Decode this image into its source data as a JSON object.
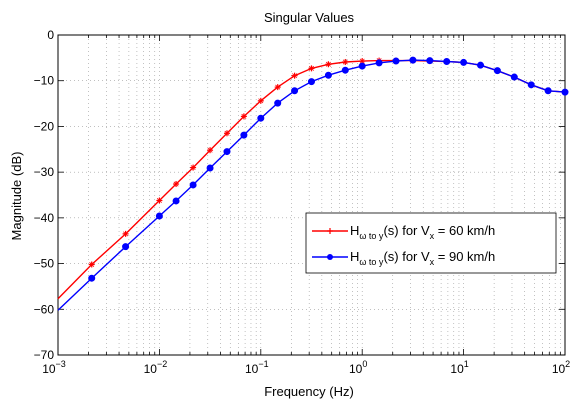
{
  "chart_data": {
    "type": "line",
    "title": "Singular Values",
    "xlabel": "Frequency  (Hz)",
    "ylabel": "Magnitude (dB)",
    "xscale": "log",
    "xlim": [
      0.001,
      100
    ],
    "ylim": [
      -70,
      0
    ],
    "grid": true,
    "x_tick_labels": [
      {
        "base": "10",
        "exp": "−3"
      },
      {
        "base": "10",
        "exp": "−2"
      },
      {
        "base": "10",
        "exp": "−1"
      },
      {
        "base": "10",
        "exp": "0"
      },
      {
        "base": "10",
        "exp": "1"
      },
      {
        "base": "10",
        "exp": "2"
      }
    ],
    "y_tick_labels": [
      "0",
      "−10",
      "−20",
      "−30",
      "−40",
      "−50",
      "−60",
      "−70"
    ],
    "legend_position": "right",
    "series": [
      {
        "name_main": "H",
        "name_sub": "ω to y",
        "name_rest": "(s)  for V",
        "name_sub2": "x",
        "name_end": " = 60 km/h",
        "color": "#ff0000",
        "marker": "plus",
        "x": [
          0.001,
          0.00215,
          0.00464,
          0.01,
          0.0146,
          0.0215,
          0.0316,
          0.0464,
          0.0681,
          0.1,
          0.1468,
          0.2154,
          0.3162,
          0.4642,
          0.6813,
          1.0,
          1.468,
          2.154,
          3.162,
          4.642,
          6.813,
          10,
          14.68,
          21.54,
          31.62,
          46.42,
          68.13,
          100
        ],
        "y": [
          -57.7,
          -50.2,
          -43.5,
          -36.2,
          -32.6,
          -29.0,
          -25.2,
          -21.5,
          -17.8,
          -14.4,
          -11.4,
          -8.9,
          -7.3,
          -6.4,
          -5.9,
          -5.7,
          -5.6,
          -5.6,
          -5.6,
          -5.7,
          -5.8,
          -6.0,
          -6.6,
          -7.8,
          -9.2,
          -10.9,
          -12.2,
          -12.5
        ]
      },
      {
        "name_main": "H",
        "name_sub": "ω to y",
        "name_rest": "(s)  for V",
        "name_sub2": "x",
        "name_end": " = 90 km/h",
        "color": "#0000ff",
        "marker": "dot",
        "x": [
          0.001,
          0.00215,
          0.00464,
          0.01,
          0.0146,
          0.0215,
          0.0316,
          0.0464,
          0.0681,
          0.1,
          0.1468,
          0.2154,
          0.3162,
          0.4642,
          0.6813,
          1.0,
          1.468,
          2.154,
          3.162,
          4.642,
          6.813,
          10,
          14.68,
          21.54,
          31.62,
          46.42,
          68.13,
          100
        ],
        "y": [
          -60.2,
          -53.2,
          -46.3,
          -39.6,
          -36.3,
          -32.8,
          -29.1,
          -25.5,
          -21.9,
          -18.2,
          -14.9,
          -12.2,
          -10.2,
          -8.8,
          -7.7,
          -6.8,
          -6.1,
          -5.7,
          -5.5,
          -5.6,
          -5.8,
          -6.0,
          -6.6,
          -7.8,
          -9.2,
          -10.9,
          -12.2,
          -12.5
        ]
      }
    ]
  }
}
